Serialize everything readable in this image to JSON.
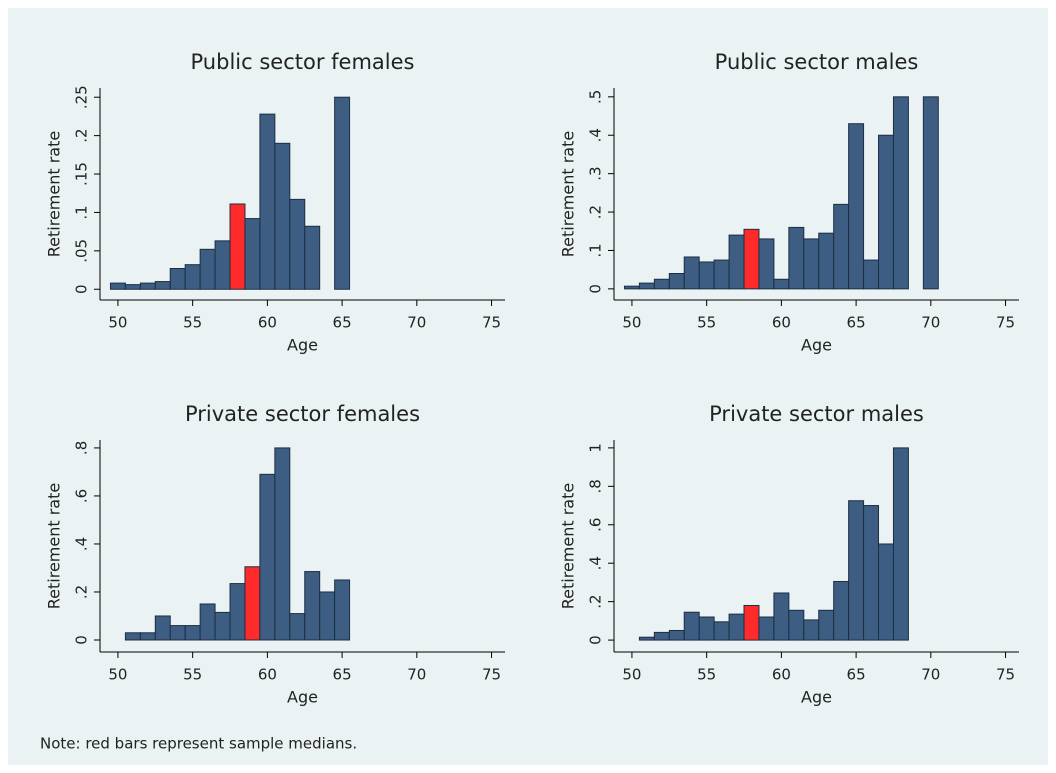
{
  "chart_data": [
    {
      "type": "bar",
      "title": "Public sector females",
      "x_label": "Age",
      "y_label": "Retirement rate",
      "x": [
        50,
        51,
        52,
        53,
        54,
        55,
        56,
        57,
        58,
        59,
        60,
        61,
        62,
        63,
        64,
        65
      ],
      "values": [
        0.008,
        0.006,
        0.008,
        0.01,
        0.027,
        0.032,
        0.052,
        0.063,
        0.111,
        0.092,
        0.228,
        0.19,
        0.117,
        0.082,
        null,
        0.25
      ],
      "color": "#3d5e82",
      "median_x": 58,
      "median_color": "#ff2a2a",
      "xlim": [
        48.8,
        75.9
      ],
      "xticks": [
        50,
        55,
        60,
        65,
        70,
        75
      ],
      "ylim": [
        -0.014,
        0.262
      ],
      "yticks": [
        0,
        {
          "value": 0.05,
          "label": ".05"
        },
        {
          "value": 0.1,
          "label": ".1"
        },
        {
          "value": 0.15,
          "label": ".15"
        },
        {
          "value": 0.2,
          "label": ".2"
        },
        {
          "value": 0.25,
          "label": ".25"
        }
      ]
    },
    {
      "type": "bar",
      "title": "Public sector males",
      "x_label": "Age",
      "y_label": "Retirement rate",
      "x": [
        50,
        51,
        52,
        53,
        54,
        55,
        56,
        57,
        58,
        59,
        60,
        61,
        62,
        63,
        64,
        65,
        66,
        67,
        68,
        69,
        70
      ],
      "values": [
        0.007,
        0.015,
        0.025,
        0.04,
        0.083,
        0.07,
        0.075,
        0.14,
        0.155,
        0.13,
        0.025,
        0.16,
        0.13,
        0.145,
        0.22,
        0.43,
        0.075,
        0.4,
        0.5,
        null,
        0.5
      ],
      "color": "#3d5e82",
      "median_x": 58,
      "median_color": "#ff2a2a",
      "xlim": [
        48.8,
        75.9
      ],
      "xticks": [
        50,
        55,
        60,
        65,
        70,
        75
      ],
      "ylim": [
        -0.029,
        0.523
      ],
      "yticks": [
        0,
        {
          "value": 0.1,
          "label": ".1"
        },
        {
          "value": 0.2,
          "label": ".2"
        },
        {
          "value": 0.3,
          "label": ".3"
        },
        {
          "value": 0.4,
          "label": ".4"
        },
        {
          "value": 0.5,
          "label": ".5"
        }
      ]
    },
    {
      "type": "bar",
      "title": "Private sector females",
      "x_label": "Age",
      "y_label": "Retirement rate",
      "x": [
        51,
        52,
        53,
        54,
        55,
        56,
        57,
        58,
        59,
        60,
        61,
        62,
        63,
        64,
        65
      ],
      "values": [
        0.03,
        0.03,
        0.1,
        0.06,
        0.06,
        0.15,
        0.115,
        0.235,
        0.305,
        0.69,
        0.8,
        0.11,
        0.285,
        0.2,
        0.25
      ],
      "color": "#3d5e82",
      "median_x": 59,
      "median_color": "#ff2a2a",
      "xlim": [
        48.8,
        75.9
      ],
      "xticks": [
        50,
        55,
        60,
        65,
        70,
        75
      ],
      "ylim": [
        -0.05,
        0.833
      ],
      "yticks": [
        0,
        {
          "value": 0.2,
          "label": ".2"
        },
        {
          "value": 0.4,
          "label": ".4"
        },
        {
          "value": 0.6,
          "label": ".6"
        },
        {
          "value": 0.8,
          "label": ".8"
        }
      ]
    },
    {
      "type": "bar",
      "title": "Private sector males",
      "x_label": "Age",
      "y_label": "Retirement rate",
      "x": [
        51,
        52,
        53,
        54,
        55,
        56,
        57,
        58,
        59,
        60,
        61,
        62,
        63,
        64,
        65,
        66,
        67,
        68
      ],
      "values": [
        0.015,
        0.04,
        0.05,
        0.145,
        0.12,
        0.095,
        0.135,
        0.18,
        0.12,
        0.245,
        0.155,
        0.105,
        0.155,
        0.305,
        0.725,
        0.7,
        0.5,
        1
      ],
      "color": "#3d5e82",
      "median_x": 58,
      "median_color": "#ff2a2a",
      "xlim": [
        48.8,
        75.9
      ],
      "xticks": [
        50,
        55,
        60,
        65,
        70,
        75
      ],
      "ylim": [
        -0.062,
        1.041
      ],
      "yticks": [
        0,
        {
          "value": 0.2,
          "label": ".2"
        },
        {
          "value": 0.4,
          "label": ".4"
        },
        {
          "value": 0.6,
          "label": ".6"
        },
        {
          "value": 0.8,
          "label": ".8"
        },
        1
      ]
    }
  ],
  "note": "Note: red bars represent sample medians."
}
